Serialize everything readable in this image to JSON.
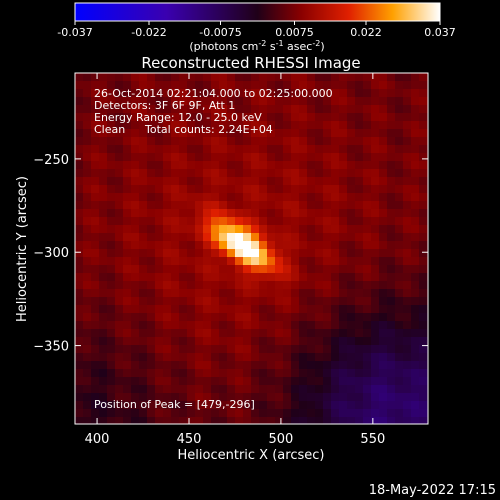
{
  "chart_data": {
    "type": "heatmap",
    "title": "Reconstructed RHESSI Image",
    "xlabel": "Heliocentric X (arcsec)",
    "ylabel": "Heliocentric Y (arcsec)",
    "xlim": [
      388,
      580
    ],
    "ylim": [
      -392,
      -204
    ],
    "x_ticks": [
      400,
      450,
      500,
      550
    ],
    "y_ticks": [
      -250,
      -300,
      -350
    ],
    "colorbar": {
      "min": -0.037,
      "max": 0.037,
      "ticks": [
        "-0.037",
        "-0.022",
        "-0.0075",
        "0.0075",
        "0.022",
        "0.037"
      ],
      "unit_text": "(photons cm",
      "unit_sup1": "-2",
      "unit_mid": " s",
      "unit_sup2": "-1",
      "unit_mid2": " asec",
      "unit_sup3": "-2",
      "unit_end": ")"
    },
    "annotations": [
      "26-Oct-2014 02:21:04.000 to 02:25:00.000",
      "Detectors: 3F 6F 9F, Att 1",
      "Energy Range: 12.0 - 25.0 keV",
      "Clean",
      "Total counts: 2.24E+04"
    ],
    "peak_label": "Position of Peak = [479,-296]",
    "peak": [
      479,
      -296
    ]
  },
  "timestamp": "18-May-2022 17:15"
}
